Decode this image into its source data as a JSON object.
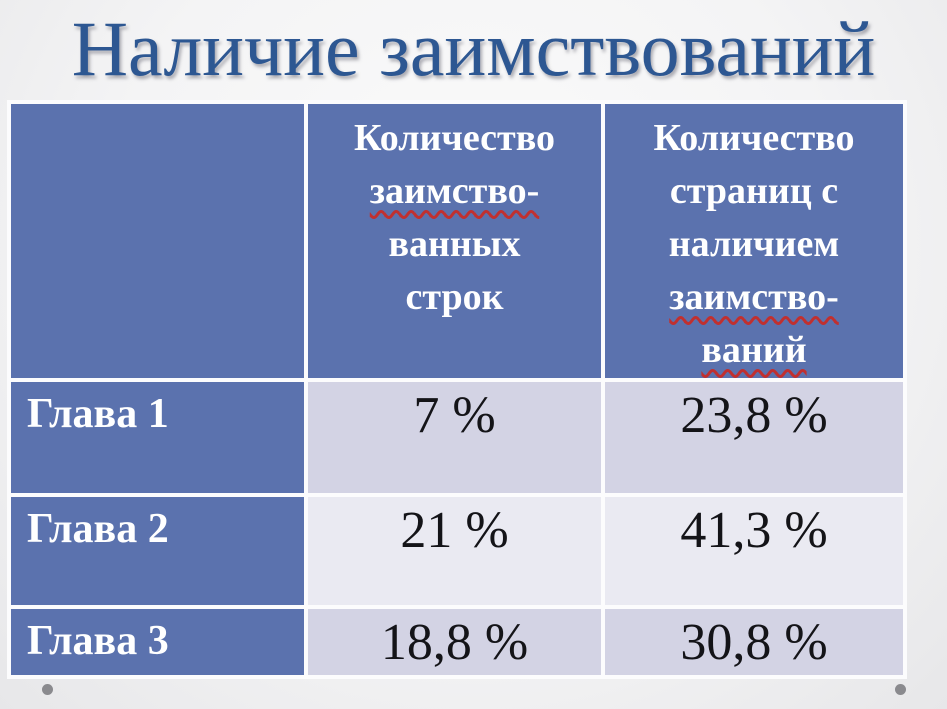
{
  "slide": {
    "title": "Наличие заимствований",
    "table": {
      "header": {
        "corner": "",
        "col_borrowed": {
          "lines": [
            "Количество",
            "заимство-",
            "ванных",
            "строк"
          ],
          "misspelled_lines": [
            1
          ]
        },
        "col_pages": {
          "lines": [
            "Количество",
            "страниц с",
            "наличием",
            "заимство-",
            "ваний"
          ],
          "misspelled_lines": [
            3,
            4
          ]
        }
      },
      "rows": [
        {
          "label": "Глава 1",
          "borrowed": "7 %",
          "pages": "23,8 %"
        },
        {
          "label": "Глава 2",
          "borrowed": "21 %",
          "pages": "41,3 %"
        },
        {
          "label": "Глава 3",
          "borrowed": "18,8 %",
          "pages": "30,8 %"
        }
      ]
    },
    "colors": {
      "title_text": "#2d5792",
      "header_bg": "#5b72ae",
      "label_bg": "#5b72ae",
      "row_band_dark": "#d3d3e4",
      "row_band_light": "#eaeaf2",
      "value_text": "#141418",
      "header_text": "#ffffff",
      "spellcheck_underline": "#c03030",
      "dot": "#8a8a8e"
    }
  }
}
